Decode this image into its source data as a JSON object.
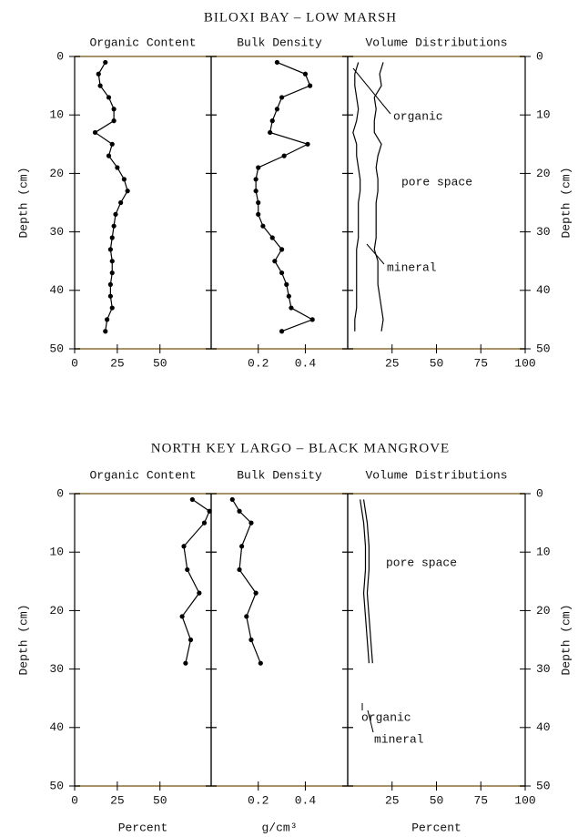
{
  "chart_data": [
    {
      "title": "BILOXI BAY – LOW MARSH",
      "panels": [
        {
          "type": "line",
          "title": "Organic Content",
          "ylabel": "Depth (cm)",
          "ytick_side": "left",
          "markers": true,
          "ylim": [
            0,
            50
          ],
          "yticks": [
            0,
            10,
            20,
            30,
            40,
            50
          ],
          "xlim": [
            0,
            80
          ],
          "xticks": [
            0,
            25,
            50
          ],
          "y": [
            1,
            3,
            5,
            7,
            9,
            11,
            13,
            15,
            17,
            19,
            21,
            23,
            25,
            27,
            29,
            31,
            33,
            35,
            37,
            39,
            41,
            43,
            45,
            47
          ],
          "series": [
            {
              "color": "#000000",
              "values": [
                18,
                14,
                15,
                20,
                23,
                23,
                12,
                22,
                20,
                25,
                29,
                31,
                27,
                24,
                23,
                22,
                21,
                22,
                22,
                21,
                21,
                22,
                19,
                18
              ]
            }
          ]
        },
        {
          "type": "line",
          "title": "Bulk Density",
          "ytick_side": "none",
          "markers": true,
          "ylim": [
            0,
            50
          ],
          "yticks": [
            0,
            10,
            20,
            30,
            40,
            50
          ],
          "xlim": [
            0,
            0.58
          ],
          "xticks": [
            0.2,
            0.4
          ],
          "y": [
            1,
            3,
            5,
            7,
            9,
            11,
            13,
            15,
            17,
            19,
            21,
            23,
            25,
            27,
            29,
            31,
            33,
            35,
            37,
            39,
            41,
            43,
            45,
            47
          ],
          "series": [
            {
              "color": "#000000",
              "values": [
                0.28,
                0.4,
                0.42,
                0.3,
                0.28,
                0.26,
                0.25,
                0.41,
                0.31,
                0.2,
                0.19,
                0.19,
                0.2,
                0.2,
                0.22,
                0.26,
                0.3,
                0.27,
                0.3,
                0.32,
                0.33,
                0.34,
                0.43,
                0.3
              ]
            }
          ]
        },
        {
          "type": "stacked-line",
          "title": "Volume Distributions",
          "ylabel": "Depth (cm)",
          "ytick_side": "right",
          "markers": false,
          "ylim": [
            0,
            50
          ],
          "yticks": [
            0,
            10,
            20,
            30,
            40,
            50
          ],
          "xlim": [
            0,
            100
          ],
          "xticks": [
            25,
            50,
            75,
            100
          ],
          "annotation": "pore space",
          "y": [
            1,
            3,
            5,
            7,
            9,
            11,
            13,
            15,
            17,
            19,
            21,
            23,
            25,
            27,
            29,
            31,
            33,
            35,
            37,
            39,
            41,
            43,
            45,
            47
          ],
          "series": [
            {
              "name": "organic",
              "color": "#000000",
              "values": [
                6,
                4,
                4,
                5,
                6,
                5,
                3,
                5,
                5,
                6,
                7,
                7,
                6,
                6,
                6,
                6,
                5,
                5,
                5,
                5,
                5,
                5,
                4,
                4
              ]
            },
            {
              "name": "mineral",
              "color": "#000000",
              "values": [
                14,
                14,
                15,
                10,
                10,
                10,
                12,
                14,
                12,
                10,
                10,
                10,
                10,
                10,
                10,
                10,
                10,
                12,
                12,
                12,
                13,
                14,
                16,
                15
              ]
            }
          ]
        }
      ]
    },
    {
      "title": "NORTH KEY LARGO – BLACK MANGROVE",
      "panels": [
        {
          "type": "line",
          "title": "Organic Content",
          "ylabel": "Depth (cm)",
          "ytick_side": "left",
          "markers": true,
          "xlabel": "Percent",
          "ylim": [
            0,
            50
          ],
          "yticks": [
            0,
            10,
            20,
            30,
            40,
            50
          ],
          "xlim": [
            0,
            80
          ],
          "xticks": [
            0,
            25,
            50
          ],
          "y": [
            1,
            3,
            5,
            9,
            13,
            17,
            21,
            25,
            29
          ],
          "series": [
            {
              "color": "#000000",
              "values": [
                69,
                79,
                76,
                64,
                66,
                73,
                63,
                68,
                65
              ]
            }
          ]
        },
        {
          "type": "line",
          "title": "Bulk Density",
          "ytick_side": "none",
          "markers": true,
          "xlabel": "g/cm³",
          "ylim": [
            0,
            50
          ],
          "yticks": [
            0,
            10,
            20,
            30,
            40,
            50
          ],
          "xlim": [
            0,
            0.58
          ],
          "xticks": [
            0.2,
            0.4
          ],
          "y": [
            1,
            3,
            5,
            9,
            13,
            17,
            21,
            25,
            29
          ],
          "series": [
            {
              "color": "#000000",
              "values": [
                0.09,
                0.12,
                0.17,
                0.13,
                0.12,
                0.19,
                0.15,
                0.17,
                0.21
              ]
            }
          ]
        },
        {
          "type": "stacked-line",
          "title": "Volume Distributions",
          "ylabel": "Depth (cm)",
          "ytick_side": "right",
          "markers": false,
          "xlabel": "Percent",
          "ylim": [
            0,
            50
          ],
          "yticks": [
            0,
            10,
            20,
            30,
            40,
            50
          ],
          "xlim": [
            0,
            100
          ],
          "xticks": [
            25,
            50,
            75,
            100
          ],
          "annotation": "pore space",
          "y": [
            1,
            3,
            5,
            9,
            13,
            17,
            21,
            25,
            29
          ],
          "series": [
            {
              "name": "organic",
              "color": "#000000",
              "values": [
                7,
                8,
                9,
                10,
                10,
                9,
                10,
                11,
                12
              ]
            },
            {
              "name": "mineral",
              "color": "#000000",
              "values": [
                2,
                2,
                2,
                2,
                2,
                2,
                2,
                2,
                2
              ]
            }
          ]
        }
      ]
    }
  ]
}
